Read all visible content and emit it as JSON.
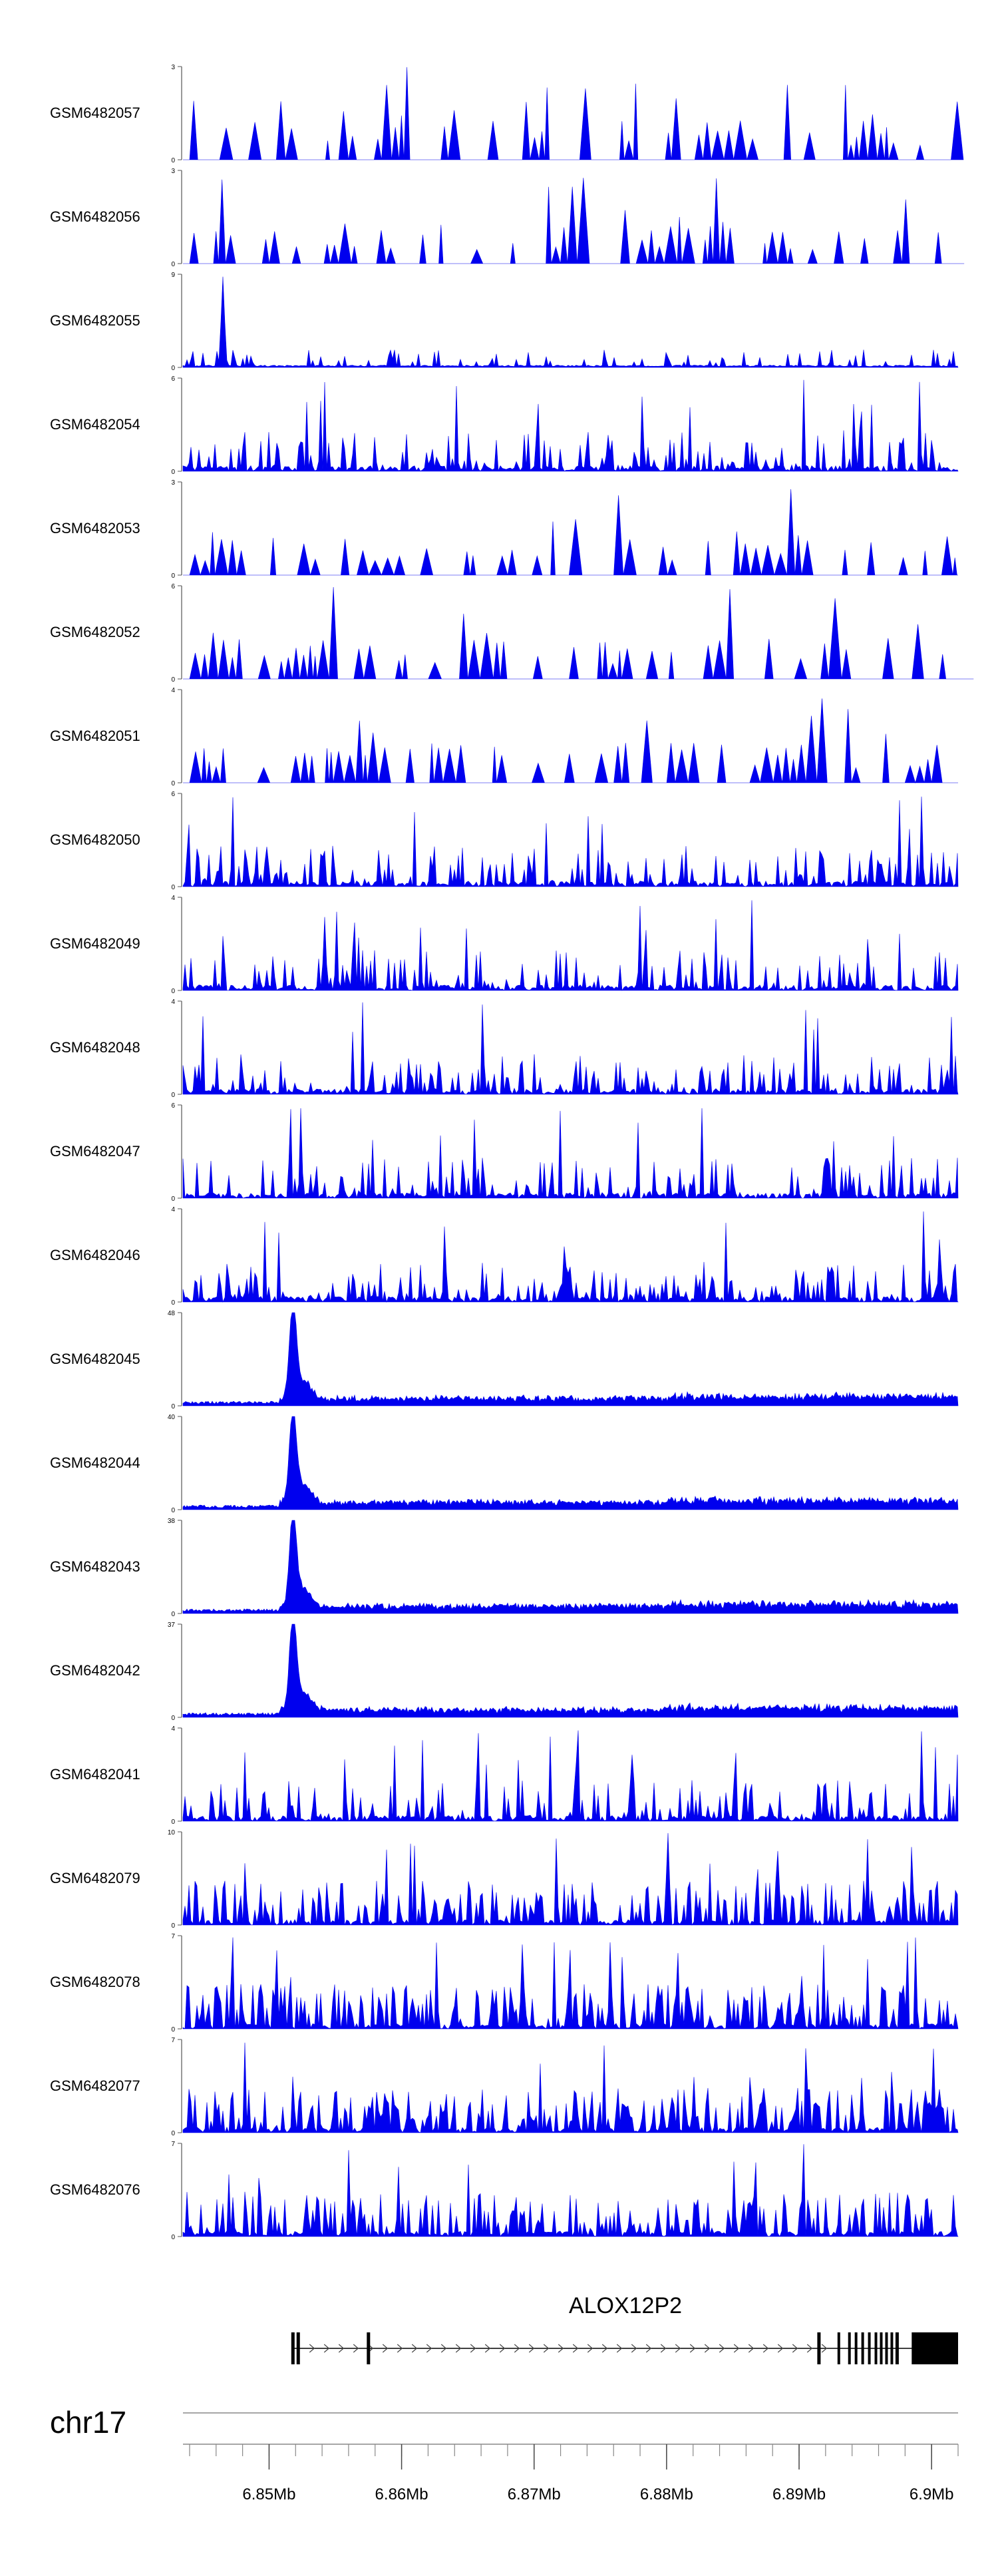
{
  "colors": {
    "signal": "#0000ee",
    "axis": "#555555",
    "gene": "#000000",
    "ideogram": "#888888"
  },
  "chart_data": {
    "type": "area",
    "title": "",
    "tracks": [
      {
        "name": "GSM6482057",
        "ymax": 3,
        "ymax_label": "3",
        "pattern": "sparse-triangles"
      },
      {
        "name": "GSM6482056",
        "ymax": 3,
        "ymax_label": "3",
        "pattern": "sparse-triangles"
      },
      {
        "name": "GSM6482055",
        "ymax": 9,
        "ymax_label": "9",
        "pattern": "early-spike"
      },
      {
        "name": "GSM6482054",
        "ymax": 6,
        "ymax_label": "6",
        "pattern": "medium"
      },
      {
        "name": "GSM6482053",
        "ymax": 3,
        "ymax_label": "3",
        "pattern": "sparse-triangles"
      },
      {
        "name": "GSM6482052",
        "ymax": 6,
        "ymax_label": "6",
        "pattern": "sparse-triangles"
      },
      {
        "name": "GSM6482051",
        "ymax": 4,
        "ymax_label": "4",
        "pattern": "sparse-triangles"
      },
      {
        "name": "GSM6482050",
        "ymax": 6,
        "ymax_label": "6",
        "pattern": "medium"
      },
      {
        "name": "GSM6482049",
        "ymax": 4,
        "ymax_label": "4",
        "pattern": "medium"
      },
      {
        "name": "GSM6482048",
        "ymax": 4,
        "ymax_label": "4",
        "pattern": "medium"
      },
      {
        "name": "GSM6482047",
        "ymax": 6,
        "ymax_label": "6",
        "pattern": "medium"
      },
      {
        "name": "GSM6482046",
        "ymax": 4,
        "ymax_label": "4",
        "pattern": "medium"
      },
      {
        "name": "GSM6482045",
        "ymax": 48,
        "ymax_label": "48",
        "pattern": "peak"
      },
      {
        "name": "GSM6482044",
        "ymax": 40,
        "ymax_label": "40",
        "pattern": "peak"
      },
      {
        "name": "GSM6482043",
        "ymax": 38,
        "ymax_label": "38",
        "pattern": "peak"
      },
      {
        "name": "GSM6482042",
        "ymax": 37,
        "ymax_label": "37",
        "pattern": "peak"
      },
      {
        "name": "GSM6482041",
        "ymax": 4,
        "ymax_label": "4",
        "pattern": "medium"
      },
      {
        "name": "GSM6482079",
        "ymax": 10,
        "ymax_label": "10",
        "pattern": "dense"
      },
      {
        "name": "GSM6482078",
        "ymax": 7,
        "ymax_label": "7",
        "pattern": "dense"
      },
      {
        "name": "GSM6482077",
        "ymax": 7,
        "ymax_label": "7",
        "pattern": "dense"
      },
      {
        "name": "GSM6482076",
        "ymax": 7,
        "ymax_label": "7",
        "pattern": "dense"
      }
    ],
    "y_min_label": "0",
    "x_range_mb": [
      6.8435,
      6.902
    ],
    "peak_position_mb": 6.8518,
    "x_ticks": [
      {
        "value": 6.85,
        "label": "6.85Mb"
      },
      {
        "value": 6.86,
        "label": "6.86Mb"
      },
      {
        "value": 6.87,
        "label": "6.87Mb"
      },
      {
        "value": 6.88,
        "label": "6.88Mb"
      },
      {
        "value": 6.89,
        "label": "6.89Mb"
      },
      {
        "value": 6.9,
        "label": "6.9Mb"
      }
    ],
    "minor_tick_step_mb": 0.002,
    "chromosome": "chr17",
    "gene": {
      "name": "ALOX12P2",
      "start_mb": 6.8518,
      "end_mb": 6.902,
      "strand": "+",
      "exons_mb": [
        6.8518,
        6.8522,
        6.8575,
        6.8915,
        6.893,
        6.8938,
        6.8943,
        6.8948,
        6.8953,
        6.8958,
        6.8962,
        6.8966,
        6.897,
        6.8974
      ]
    }
  }
}
